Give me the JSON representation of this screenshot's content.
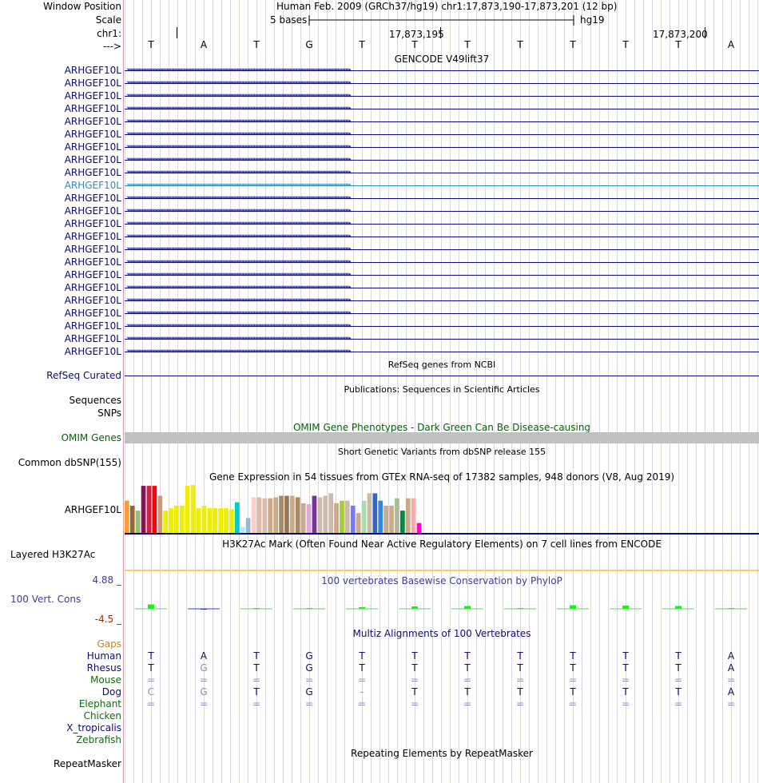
{
  "header": {
    "window_position_label": "Window Position",
    "window_position_value": "Human Feb. 2009 (GRCh37/hg19)   chr1:17,873,190-17,873,201 (12 bp)",
    "scale_label": "Scale",
    "scale_bases": "5 bases",
    "scale_db": "hg19",
    "chrom_label": "chr1:",
    "coord_1": "17,873,195",
    "coord_2": "17,873,200",
    "strand_label": "--->"
  },
  "dna_sequence": [
    "T",
    "A",
    "T",
    "G",
    "T",
    "T",
    "T",
    "T",
    "T",
    "T",
    "T",
    "A"
  ],
  "gencode": {
    "title": "GENCODE V49lift37",
    "transcripts": [
      {
        "name": "ARHGEF10L",
        "highlight": false
      },
      {
        "name": "ARHGEF10L",
        "highlight": false
      },
      {
        "name": "ARHGEF10L",
        "highlight": false
      },
      {
        "name": "ARHGEF10L",
        "highlight": false
      },
      {
        "name": "ARHGEF10L",
        "highlight": false
      },
      {
        "name": "ARHGEF10L",
        "highlight": false
      },
      {
        "name": "ARHGEF10L",
        "highlight": false
      },
      {
        "name": "ARHGEF10L",
        "highlight": false
      },
      {
        "name": "ARHGEF10L",
        "highlight": false
      },
      {
        "name": "ARHGEF10L",
        "highlight": true
      },
      {
        "name": "ARHGEF10L",
        "highlight": false
      },
      {
        "name": "ARHGEF10L",
        "highlight": false
      },
      {
        "name": "ARHGEF10L",
        "highlight": false
      },
      {
        "name": "ARHGEF10L",
        "highlight": false
      },
      {
        "name": "ARHGEF10L",
        "highlight": false
      },
      {
        "name": "ARHGEF10L",
        "highlight": false
      },
      {
        "name": "ARHGEF10L",
        "highlight": false
      },
      {
        "name": "ARHGEF10L",
        "highlight": false
      },
      {
        "name": "ARHGEF10L",
        "highlight": false
      },
      {
        "name": "ARHGEF10L",
        "highlight": false
      },
      {
        "name": "ARHGEF10L",
        "highlight": false
      },
      {
        "name": "ARHGEF10L",
        "highlight": false
      },
      {
        "name": "ARHGEF10L",
        "highlight": false
      }
    ],
    "arrow_glyphs": "››››››››››››››››››››››››››››››››››››››››››››››››››››››››››››››››››››››››››››››››››››››››››››››››››››››››››››››››››››››››››››››››››››››››››››››››››››››››››››››››››››››››››››››››››››››››››››››››››››››››"
  },
  "refseq": {
    "title": "RefSeq genes from NCBI",
    "label": "RefSeq Curated"
  },
  "publications": {
    "title": "Publications: Sequences in Scientific Articles",
    "label_1": "Sequences",
    "label_2": "SNPs"
  },
  "omim": {
    "title": "OMIM Gene Phenotypes - Dark Green Can Be Disease-causing",
    "label": "OMIM Genes"
  },
  "dbsnp": {
    "title": "Short Genetic Variants from dbSNP release 155",
    "label": "Common dbSNP(155)"
  },
  "gtex": {
    "title": "Gene Expression in 54 tissues from GTEx RNA-seq of 17382 samples, 948 donors (V8, Aug 2019)",
    "label": "ARHGEF10L",
    "bar_values": [
      0.65,
      0.55,
      0.45,
      0.95,
      0.95,
      0.95,
      0.75,
      0.45,
      0.5,
      0.55,
      0.55,
      0.95,
      0.97,
      0.5,
      0.55,
      0.5,
      0.5,
      0.5,
      0.5,
      0.48,
      0.62,
      0.12,
      0.3,
      0.72,
      0.72,
      0.7,
      0.7,
      0.72,
      0.75,
      0.75,
      0.75,
      0.72,
      0.6,
      0.58,
      0.75,
      0.72,
      0.75,
      0.8,
      0.6,
      0.65,
      0.65,
      0.55,
      0.4,
      0.65,
      0.8,
      0.8,
      0.65,
      0.55,
      0.55,
      0.7,
      0.45,
      0.7,
      0.7,
      0.2
    ],
    "bar_colors": [
      "#ff9933",
      "#996633",
      "#99bb77",
      "#881155",
      "#cc2244",
      "#ff0000",
      "#cc9977",
      "#eeee00",
      "#eeee00",
      "#eeee00",
      "#eeee00",
      "#eeee00",
      "#eeee00",
      "#eeee00",
      "#eeee00",
      "#eeee00",
      "#eeee00",
      "#eeee00",
      "#eeee00",
      "#eeee00",
      "#00cccc",
      "#aaeeff",
      "#99bbcc",
      "#ffcccc",
      "#ddbbaa",
      "#ddbbaa",
      "#ccaa88",
      "#ccaa88",
      "#aa8866",
      "#997755",
      "#ccaa88",
      "#aa8866",
      "#ccaa88",
      "#ddaadd",
      "#773399",
      "#ccbbaa",
      "#ccbbaa",
      "#ccbbaa",
      "#ccaa88",
      "#aacc33",
      "#ccbbaa",
      "#7777ff",
      "#ccaa88",
      "#aaddaa",
      "#ccbbaa",
      "#3366cc",
      "#3388dd",
      "#ccaa88",
      "#ccaa88",
      "#aabb99",
      "#008844",
      "#ccaa88",
      "#ffaaaa",
      "#ff00cc"
    ]
  },
  "h3k27ac": {
    "title": "H3K27Ac Mark (Often Found Near Active Regulatory Elements) on 7 cell lines from ENCODE",
    "label": "Layered H3K27Ac"
  },
  "phylop": {
    "title": "100 vertebrates Basewise Conservation by PhyloP",
    "label": "100 Vert. Cons",
    "max_label": "4.88 _",
    "min_label": "-4.5 _",
    "scores": [
      0.55,
      -0.1,
      0,
      0,
      0.2,
      0.3,
      0.35,
      0,
      0.45,
      0.4,
      0.35,
      0.1
    ],
    "color": "#00ff00"
  },
  "multiz": {
    "title": "Multiz Alignments of 100 Vertebrates",
    "gaps_label": "Gaps",
    "species": [
      {
        "name": "Human",
        "color": "#0c0c78",
        "seq": [
          "T",
          "A",
          "T",
          "G",
          "T",
          "T",
          "T",
          "T",
          "T",
          "T",
          "T",
          "A"
        ],
        "dim": [
          false,
          false,
          false,
          false,
          false,
          false,
          false,
          false,
          false,
          false,
          false,
          false
        ]
      },
      {
        "name": "Rhesus",
        "color": "#0c0c78",
        "seq": [
          "T",
          "G",
          "T",
          "G",
          "T",
          "T",
          "T",
          "T",
          "T",
          "T",
          "T",
          "A"
        ],
        "dim": [
          false,
          true,
          false,
          false,
          false,
          false,
          false,
          false,
          false,
          false,
          false,
          false
        ]
      },
      {
        "name": "Mouse",
        "color": "#0c6e0c",
        "seq": [
          "=",
          "=",
          "=",
          "=",
          "=",
          "=",
          "=",
          "=",
          "=",
          "=",
          "=",
          "="
        ],
        "dim": [
          true,
          true,
          true,
          true,
          true,
          true,
          true,
          true,
          true,
          true,
          true,
          true
        ]
      },
      {
        "name": "Dog",
        "color": "#0c0c78",
        "seq": [
          "C",
          "G",
          "T",
          "G",
          "-",
          "T",
          "T",
          "T",
          "T",
          "T",
          "T",
          "A"
        ],
        "dim": [
          true,
          true,
          false,
          false,
          true,
          false,
          false,
          false,
          false,
          false,
          false,
          false
        ]
      },
      {
        "name": "Elephant",
        "color": "#0c6e0c",
        "seq": [
          "=",
          "=",
          "=",
          "=",
          "=",
          "=",
          "=",
          "=",
          "=",
          "=",
          "=",
          "="
        ],
        "dim": [
          true,
          true,
          true,
          true,
          true,
          true,
          true,
          true,
          true,
          true,
          true,
          true
        ]
      },
      {
        "name": "Chicken",
        "color": "#0c6e0c",
        "seq": [],
        "dim": []
      },
      {
        "name": "X_tropicalis",
        "color": "#0c0c78",
        "seq": [],
        "dim": []
      },
      {
        "name": "Zebrafish",
        "color": "#0c6e0c",
        "seq": [],
        "dim": []
      }
    ]
  },
  "repeatmasker": {
    "title": "Repeating Elements by RepeatMasker",
    "label": "RepeatMasker"
  }
}
